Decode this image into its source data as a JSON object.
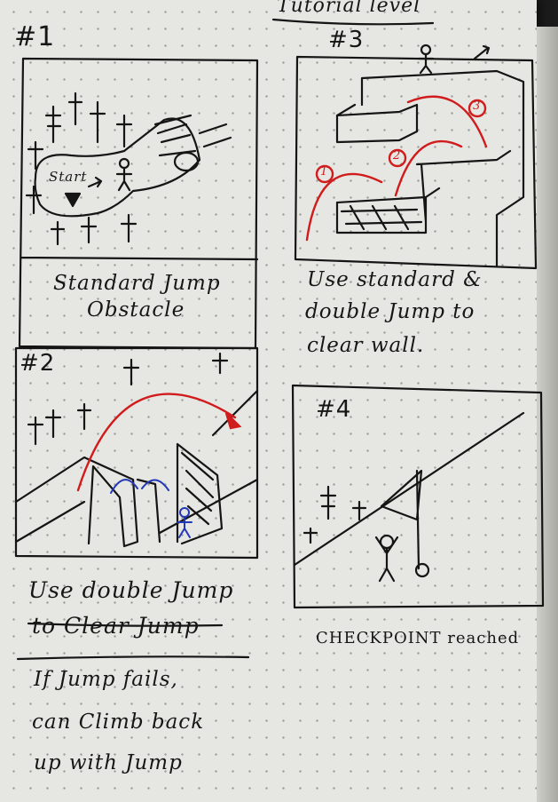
{
  "header": {
    "title": "Tutorial level"
  },
  "panels": [
    {
      "number": "#1",
      "caption_line1": "Standard Jump",
      "caption_line2": "Obstacle",
      "start_label": "Start"
    },
    {
      "number": "#2",
      "caption_line1": "Use double Jump",
      "caption_line2": "to Clear Jump"
    },
    {
      "number": "#3",
      "caption_line1": "Use standard &",
      "caption_line2": "double Jump to",
      "caption_line3": "clear wall.",
      "markers": [
        "1",
        "2",
        "3"
      ]
    },
    {
      "number": "#4",
      "caption_line1": "CHECKPOINT reached"
    }
  ],
  "note": {
    "line1": "If Jump fails,",
    "line2": "can Climb back",
    "line3": "up with Jump"
  },
  "colors": {
    "ink": "#151515",
    "red_pen": "#d01c1c",
    "blue_pen": "#2338b8",
    "paper": "#e6e6e2"
  }
}
